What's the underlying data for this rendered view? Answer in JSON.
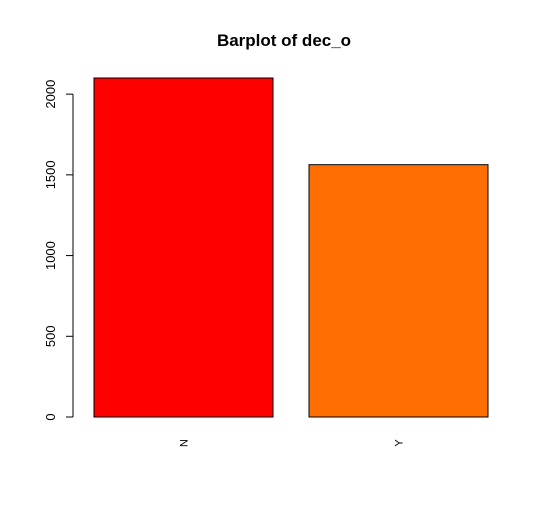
{
  "chart_data": {
    "type": "bar",
    "title": "Barplot of dec_o",
    "xlabel": "",
    "ylabel": "",
    "categories": [
      "N",
      "Y"
    ],
    "values": [
      2100,
      1563
    ],
    "ylim": [
      0,
      2100
    ],
    "yticks": [
      0,
      500,
      1000,
      1500,
      2000
    ],
    "colors": [
      "#ff0000",
      "#ff6e00"
    ],
    "grid": false,
    "legend": "none"
  }
}
